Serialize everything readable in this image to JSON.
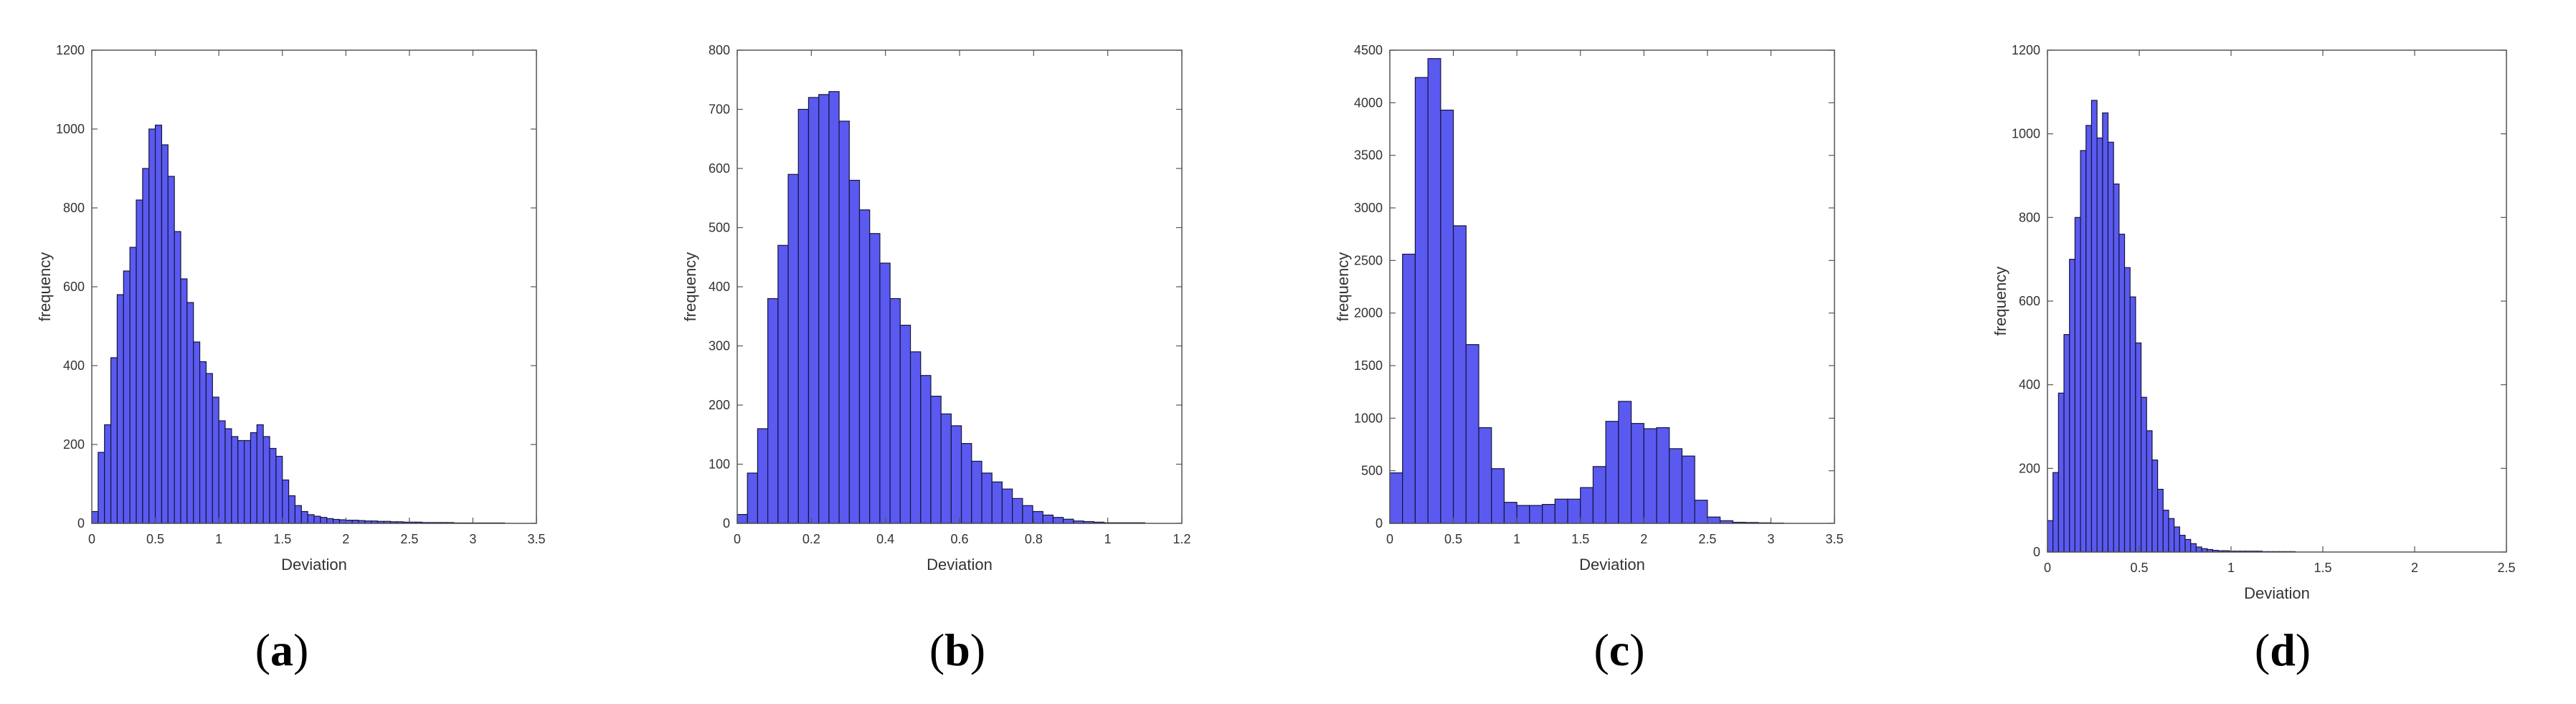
{
  "colors": {
    "bar_fill": "#5a5af0",
    "bar_stroke": "#14143c",
    "axes": "#555555"
  },
  "captions": [
    {
      "open": "(",
      "letter": "a",
      "close": ")"
    },
    {
      "open": "(",
      "letter": "b",
      "close": ")"
    },
    {
      "open": "(",
      "letter": "c",
      "close": ")"
    },
    {
      "open": "(",
      "letter": "d",
      "close": ")"
    }
  ],
  "chart_data": [
    {
      "type": "bar",
      "xlabel": "Deviation",
      "ylabel": "frequency",
      "xlim": [
        0,
        3.5
      ],
      "ylim": [
        0,
        1200
      ],
      "xticks": [
        "0",
        "0.5",
        "1",
        "1.5",
        "2",
        "2.5",
        "3",
        "3.5"
      ],
      "yticks": [
        "0",
        "200",
        "400",
        "600",
        "800",
        "1000",
        "1200"
      ],
      "bin_start": 0.0,
      "bin_width": 0.05,
      "values": [
        30,
        180,
        250,
        420,
        580,
        640,
        700,
        820,
        900,
        1000,
        1010,
        960,
        880,
        740,
        620,
        560,
        460,
        410,
        380,
        320,
        260,
        240,
        220,
        210,
        210,
        230,
        250,
        220,
        190,
        170,
        110,
        70,
        45,
        30,
        22,
        18,
        15,
        12,
        10,
        9,
        8,
        8,
        7,
        6,
        6,
        5,
        5,
        4,
        4,
        3,
        3,
        3,
        2,
        2,
        2,
        2,
        2,
        1,
        1,
        1,
        1,
        1,
        1,
        1,
        1
      ]
    },
    {
      "type": "bar",
      "xlabel": "Deviation",
      "ylabel": "frequency",
      "xlim": [
        0,
        1.2
      ],
      "ylim": [
        0,
        800
      ],
      "xticks": [
        "0",
        "0.2",
        "0.4",
        "0.6",
        "0.8",
        "1",
        "1.2"
      ],
      "yticks": [
        "0",
        "100",
        "200",
        "300",
        "400",
        "500",
        "600",
        "700",
        "800"
      ],
      "bin_start": 0.0,
      "bin_width": 0.0275,
      "values": [
        15,
        85,
        160,
        380,
        470,
        590,
        700,
        720,
        725,
        730,
        680,
        580,
        530,
        490,
        440,
        380,
        335,
        290,
        250,
        215,
        185,
        165,
        135,
        105,
        85,
        70,
        58,
        42,
        30,
        20,
        14,
        10,
        7,
        4,
        3,
        2,
        1,
        1,
        1,
        1
      ]
    },
    {
      "type": "bar",
      "xlabel": "Deviation",
      "ylabel": "frequency",
      "xlim": [
        0,
        3.5
      ],
      "ylim": [
        0,
        4500
      ],
      "xticks": [
        "0",
        "0.5",
        "1",
        "1.5",
        "2",
        "2.5",
        "3",
        "3.5"
      ],
      "yticks": [
        "0",
        "500",
        "1000",
        "1500",
        "2000",
        "2500",
        "3000",
        "3500",
        "4000",
        "4500"
      ],
      "bin_start": 0.0,
      "bin_width": 0.1,
      "values": [
        480,
        2560,
        4240,
        4420,
        3930,
        2830,
        1700,
        910,
        520,
        200,
        170,
        170,
        180,
        230,
        230,
        340,
        540,
        970,
        1160,
        950,
        900,
        910,
        710,
        640,
        220,
        60,
        25,
        10,
        8,
        5,
        3
      ]
    },
    {
      "type": "bar",
      "xlabel": "Deviation",
      "ylabel": "frequency",
      "xlim": [
        0,
        2.5
      ],
      "ylim": [
        0,
        1200
      ],
      "xticks": [
        "0",
        "0.5",
        "1",
        "1.5",
        "2",
        "2.5"
      ],
      "yticks": [
        "0",
        "200",
        "400",
        "600",
        "800",
        "1000",
        "1200"
      ],
      "bin_start": 0.0,
      "bin_width": 0.03,
      "values": [
        75,
        190,
        380,
        520,
        700,
        800,
        960,
        1020,
        1080,
        990,
        1050,
        980,
        880,
        760,
        680,
        610,
        500,
        370,
        290,
        220,
        150,
        100,
        80,
        60,
        40,
        30,
        20,
        12,
        8,
        6,
        4,
        3,
        3,
        2,
        2,
        2,
        2,
        2,
        2,
        1,
        1,
        1,
        1,
        1,
        1
      ]
    }
  ]
}
